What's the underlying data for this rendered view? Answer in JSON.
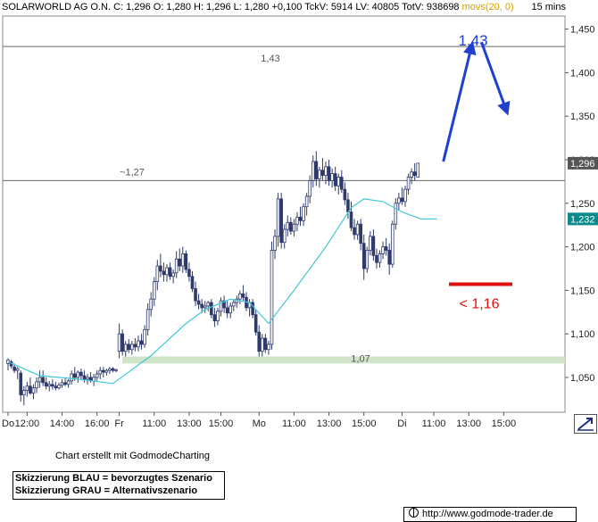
{
  "header": {
    "symbol": "SOLARWORLD AG O.N.",
    "quote": "C: 1,296 O: 1,280 H: 1,296 L: 1,280 +0,100 TckV: 5914 LV: 40805 TotV: 938698",
    "moving_avg_label": "movs(20, 0)",
    "timeframe": "15 mins"
  },
  "footer": {
    "credit": "Chart erstellt mit GodmodeCharting",
    "legend_blue": "Skizzierung BLAU = bevorzugtes Szenario",
    "legend_gray": "Skizzierung GRAU = Alternativszenario",
    "url": "http://www.godmode-trader.de"
  },
  "colors": {
    "candle": "#2e3a6b",
    "moving_average": "#40c8d8",
    "support_zone": "#cfe3c9",
    "blue_annotation": "#1f3fd0",
    "red_annotation": "#e01010",
    "price_badge": "#555555",
    "ma_badge": "#0a8a8a"
  },
  "chart_data": {
    "type": "candlestick",
    "y_axis": {
      "position": "right",
      "min": 1.01,
      "max": 1.465,
      "ticks": [
        "1,450",
        "1,400",
        "1,350",
        "1,300",
        "1,250",
        "1,200",
        "1,150",
        "1,100",
        "1,050"
      ],
      "tick_values": [
        1.45,
        1.4,
        1.35,
        1.3,
        1.25,
        1.2,
        1.15,
        1.1,
        1.05
      ]
    },
    "x_axis": {
      "labels": [
        "Do",
        "12:00",
        "14:00",
        "16:00",
        "Fr",
        "11:00",
        "13:00",
        "15:00",
        "Mo",
        "11:00",
        "13:00",
        "15:00",
        "Di",
        "11:00",
        "13:00",
        "15:00"
      ],
      "label_index": [
        0,
        6,
        17,
        28,
        35,
        46,
        57,
        67,
        79,
        90,
        101,
        112,
        124,
        134,
        145,
        156
      ]
    },
    "bar_count": 164,
    "current_price_badge": "1,296",
    "moving_average_badge": "1,232",
    "candles": [
      {
        "o": 1.066,
        "h": 1.072,
        "l": 1.058,
        "c": 1.07
      },
      {
        "o": 1.068,
        "h": 1.07,
        "l": 1.06,
        "c": 1.063
      },
      {
        "o": 1.062,
        "h": 1.066,
        "l": 1.055,
        "c": 1.058
      },
      {
        "o": 1.058,
        "h": 1.062,
        "l": 1.048,
        "c": 1.06
      },
      {
        "o": 1.055,
        "h": 1.058,
        "l": 1.022,
        "c": 1.03
      },
      {
        "o": 1.03,
        "h": 1.04,
        "l": 1.018,
        "c": 1.035
      },
      {
        "o": 1.035,
        "h": 1.045,
        "l": 1.028,
        "c": 1.04
      },
      {
        "o": 1.04,
        "h": 1.05,
        "l": 1.03,
        "c": 1.032
      },
      {
        "o": 1.032,
        "h": 1.042,
        "l": 1.025,
        "c": 1.038
      },
      {
        "o": 1.038,
        "h": 1.05,
        "l": 1.032,
        "c": 1.045
      },
      {
        "o": 1.045,
        "h": 1.058,
        "l": 1.038,
        "c": 1.05
      },
      {
        "o": 1.05,
        "h": 1.058,
        "l": 1.04,
        "c": 1.044
      },
      {
        "o": 1.044,
        "h": 1.05,
        "l": 1.036,
        "c": 1.04
      },
      {
        "o": 1.04,
        "h": 1.046,
        "l": 1.034,
        "c": 1.042
      },
      {
        "o": 1.042,
        "h": 1.048,
        "l": 1.036,
        "c": 1.04
      },
      {
        "o": 1.04,
        "h": 1.045,
        "l": 1.035,
        "c": 1.038
      },
      {
        "o": 1.038,
        "h": 1.044,
        "l": 1.036,
        "c": 1.041
      },
      {
        "o": 1.041,
        "h": 1.048,
        "l": 1.038,
        "c": 1.044
      },
      {
        "o": 1.044,
        "h": 1.05,
        "l": 1.04,
        "c": 1.042
      },
      {
        "o": 1.042,
        "h": 1.048,
        "l": 1.038,
        "c": 1.046
      },
      {
        "o": 1.046,
        "h": 1.058,
        "l": 1.042,
        "c": 1.054
      },
      {
        "o": 1.054,
        "h": 1.062,
        "l": 1.046,
        "c": 1.05
      },
      {
        "o": 1.05,
        "h": 1.058,
        "l": 1.044,
        "c": 1.056
      },
      {
        "o": 1.056,
        "h": 1.06,
        "l": 1.048,
        "c": 1.052
      },
      {
        "o": 1.052,
        "h": 1.058,
        "l": 1.044,
        "c": 1.048
      },
      {
        "o": 1.048,
        "h": 1.054,
        "l": 1.042,
        "c": 1.05
      },
      {
        "o": 1.05,
        "h": 1.056,
        "l": 1.044,
        "c": 1.046
      },
      {
        "o": 1.046,
        "h": 1.054,
        "l": 1.04,
        "c": 1.05
      },
      {
        "o": 1.05,
        "h": 1.058,
        "l": 1.046,
        "c": 1.054
      },
      {
        "o": 1.054,
        "h": 1.062,
        "l": 1.048,
        "c": 1.058
      },
      {
        "o": 1.058,
        "h": 1.062,
        "l": 1.05,
        "c": 1.056
      },
      {
        "o": 1.056,
        "h": 1.06,
        "l": 1.052,
        "c": 1.058
      },
      {
        "o": 1.058,
        "h": 1.062,
        "l": 1.054,
        "c": 1.06
      },
      {
        "o": 1.06,
        "h": 1.062,
        "l": 1.056,
        "c": 1.058
      },
      {
        "o": 1.058,
        "h": 1.06,
        "l": 1.056,
        "c": 1.059
      },
      {
        "o": 1.08,
        "h": 1.112,
        "l": 1.072,
        "c": 1.1
      },
      {
        "o": 1.1,
        "h": 1.105,
        "l": 1.075,
        "c": 1.08
      },
      {
        "o": 1.08,
        "h": 1.092,
        "l": 1.074,
        "c": 1.088
      },
      {
        "o": 1.088,
        "h": 1.094,
        "l": 1.078,
        "c": 1.082
      },
      {
        "o": 1.082,
        "h": 1.092,
        "l": 1.076,
        "c": 1.088
      },
      {
        "o": 1.088,
        "h": 1.095,
        "l": 1.08,
        "c": 1.085
      },
      {
        "o": 1.085,
        "h": 1.098,
        "l": 1.08,
        "c": 1.092
      },
      {
        "o": 1.092,
        "h": 1.1,
        "l": 1.082,
        "c": 1.088
      },
      {
        "o": 1.088,
        "h": 1.11,
        "l": 1.084,
        "c": 1.105
      },
      {
        "o": 1.105,
        "h": 1.135,
        "l": 1.098,
        "c": 1.128
      },
      {
        "o": 1.128,
        "h": 1.148,
        "l": 1.12,
        "c": 1.14
      },
      {
        "o": 1.14,
        "h": 1.165,
        "l": 1.132,
        "c": 1.16
      },
      {
        "o": 1.16,
        "h": 1.185,
        "l": 1.15,
        "c": 1.178
      },
      {
        "o": 1.178,
        "h": 1.192,
        "l": 1.165,
        "c": 1.172
      },
      {
        "o": 1.172,
        "h": 1.182,
        "l": 1.16,
        "c": 1.168
      },
      {
        "o": 1.168,
        "h": 1.18,
        "l": 1.16,
        "c": 1.176
      },
      {
        "o": 1.176,
        "h": 1.182,
        "l": 1.162,
        "c": 1.166
      },
      {
        "o": 1.166,
        "h": 1.174,
        "l": 1.158,
        "c": 1.17
      },
      {
        "o": 1.17,
        "h": 1.195,
        "l": 1.164,
        "c": 1.186
      },
      {
        "o": 1.186,
        "h": 1.198,
        "l": 1.172,
        "c": 1.178
      },
      {
        "o": 1.178,
        "h": 1.2,
        "l": 1.17,
        "c": 1.192
      },
      {
        "o": 1.192,
        "h": 1.196,
        "l": 1.17,
        "c": 1.174
      },
      {
        "o": 1.174,
        "h": 1.182,
        "l": 1.16,
        "c": 1.166
      },
      {
        "o": 1.166,
        "h": 1.172,
        "l": 1.148,
        "c": 1.152
      },
      {
        "o": 1.152,
        "h": 1.16,
        "l": 1.132,
        "c": 1.138
      },
      {
        "o": 1.138,
        "h": 1.146,
        "l": 1.128,
        "c": 1.134
      },
      {
        "o": 1.134,
        "h": 1.14,
        "l": 1.124,
        "c": 1.13
      },
      {
        "o": 1.13,
        "h": 1.138,
        "l": 1.124,
        "c": 1.132
      },
      {
        "o": 1.132,
        "h": 1.138,
        "l": 1.126,
        "c": 1.136
      },
      {
        "o": 1.136,
        "h": 1.14,
        "l": 1.118,
        "c": 1.122
      },
      {
        "o": 1.122,
        "h": 1.13,
        "l": 1.108,
        "c": 1.115
      },
      {
        "o": 1.115,
        "h": 1.13,
        "l": 1.11,
        "c": 1.126
      },
      {
        "o": 1.126,
        "h": 1.142,
        "l": 1.12,
        "c": 1.138
      },
      {
        "o": 1.138,
        "h": 1.144,
        "l": 1.124,
        "c": 1.13
      },
      {
        "o": 1.13,
        "h": 1.138,
        "l": 1.118,
        "c": 1.124
      },
      {
        "o": 1.124,
        "h": 1.136,
        "l": 1.118,
        "c": 1.132
      },
      {
        "o": 1.132,
        "h": 1.14,
        "l": 1.126,
        "c": 1.136
      },
      {
        "o": 1.136,
        "h": 1.144,
        "l": 1.13,
        "c": 1.14
      },
      {
        "o": 1.14,
        "h": 1.15,
        "l": 1.134,
        "c": 1.146
      },
      {
        "o": 1.146,
        "h": 1.156,
        "l": 1.138,
        "c": 1.142
      },
      {
        "o": 1.142,
        "h": 1.148,
        "l": 1.126,
        "c": 1.13
      },
      {
        "o": 1.13,
        "h": 1.14,
        "l": 1.12,
        "c": 1.136
      },
      {
        "o": 1.136,
        "h": 1.14,
        "l": 1.118,
        "c": 1.122
      },
      {
        "o": 1.122,
        "h": 1.128,
        "l": 1.098,
        "c": 1.102
      },
      {
        "o": 1.102,
        "h": 1.11,
        "l": 1.074,
        "c": 1.08
      },
      {
        "o": 1.08,
        "h": 1.1,
        "l": 1.074,
        "c": 1.095
      },
      {
        "o": 1.095,
        "h": 1.1,
        "l": 1.078,
        "c": 1.082
      },
      {
        "o": 1.082,
        "h": 1.092,
        "l": 1.076,
        "c": 1.088
      },
      {
        "o": 1.088,
        "h": 1.206,
        "l": 1.082,
        "c": 1.196
      },
      {
        "o": 1.196,
        "h": 1.22,
        "l": 1.186,
        "c": 1.212
      },
      {
        "o": 1.212,
        "h": 1.262,
        "l": 1.2,
        "c": 1.255
      },
      {
        "o": 1.255,
        "h": 1.262,
        "l": 1.198,
        "c": 1.205
      },
      {
        "o": 1.205,
        "h": 1.226,
        "l": 1.198,
        "c": 1.22
      },
      {
        "o": 1.22,
        "h": 1.236,
        "l": 1.212,
        "c": 1.228
      },
      {
        "o": 1.228,
        "h": 1.234,
        "l": 1.214,
        "c": 1.218
      },
      {
        "o": 1.218,
        "h": 1.232,
        "l": 1.212,
        "c": 1.226
      },
      {
        "o": 1.226,
        "h": 1.24,
        "l": 1.218,
        "c": 1.234
      },
      {
        "o": 1.234,
        "h": 1.246,
        "l": 1.224,
        "c": 1.23
      },
      {
        "o": 1.23,
        "h": 1.25,
        "l": 1.224,
        "c": 1.246
      },
      {
        "o": 1.246,
        "h": 1.262,
        "l": 1.236,
        "c": 1.258
      },
      {
        "o": 1.258,
        "h": 1.282,
        "l": 1.25,
        "c": 1.276
      },
      {
        "o": 1.276,
        "h": 1.305,
        "l": 1.268,
        "c": 1.298
      },
      {
        "o": 1.298,
        "h": 1.31,
        "l": 1.27,
        "c": 1.278
      },
      {
        "o": 1.278,
        "h": 1.292,
        "l": 1.268,
        "c": 1.288
      },
      {
        "o": 1.288,
        "h": 1.302,
        "l": 1.276,
        "c": 1.282
      },
      {
        "o": 1.282,
        "h": 1.298,
        "l": 1.272,
        "c": 1.292
      },
      {
        "o": 1.292,
        "h": 1.3,
        "l": 1.27,
        "c": 1.276
      },
      {
        "o": 1.276,
        "h": 1.29,
        "l": 1.268,
        "c": 1.284
      },
      {
        "o": 1.284,
        "h": 1.292,
        "l": 1.264,
        "c": 1.27
      },
      {
        "o": 1.27,
        "h": 1.284,
        "l": 1.26,
        "c": 1.28
      },
      {
        "o": 1.28,
        "h": 1.288,
        "l": 1.262,
        "c": 1.266
      },
      {
        "o": 1.266,
        "h": 1.274,
        "l": 1.248,
        "c": 1.254
      },
      {
        "o": 1.254,
        "h": 1.262,
        "l": 1.232,
        "c": 1.24
      },
      {
        "o": 1.24,
        "h": 1.252,
        "l": 1.218,
        "c": 1.222
      },
      {
        "o": 1.222,
        "h": 1.232,
        "l": 1.208,
        "c": 1.214
      },
      {
        "o": 1.214,
        "h": 1.23,
        "l": 1.208,
        "c": 1.226
      },
      {
        "o": 1.226,
        "h": 1.232,
        "l": 1.196,
        "c": 1.204
      },
      {
        "o": 1.204,
        "h": 1.214,
        "l": 1.162,
        "c": 1.175
      },
      {
        "o": 1.175,
        "h": 1.2,
        "l": 1.17,
        "c": 1.196
      },
      {
        "o": 1.196,
        "h": 1.218,
        "l": 1.19,
        "c": 1.212
      },
      {
        "o": 1.212,
        "h": 1.22,
        "l": 1.184,
        "c": 1.19
      },
      {
        "o": 1.19,
        "h": 1.198,
        "l": 1.175,
        "c": 1.182
      },
      {
        "o": 1.182,
        "h": 1.196,
        "l": 1.176,
        "c": 1.192
      },
      {
        "o": 1.192,
        "h": 1.206,
        "l": 1.186,
        "c": 1.2
      },
      {
        "o": 1.2,
        "h": 1.21,
        "l": 1.19,
        "c": 1.196
      },
      {
        "o": 1.196,
        "h": 1.204,
        "l": 1.168,
        "c": 1.18
      },
      {
        "o": 1.18,
        "h": 1.23,
        "l": 1.176,
        "c": 1.226
      },
      {
        "o": 1.226,
        "h": 1.256,
        "l": 1.22,
        "c": 1.25
      },
      {
        "o": 1.25,
        "h": 1.262,
        "l": 1.242,
        "c": 1.256
      },
      {
        "o": 1.256,
        "h": 1.268,
        "l": 1.248,
        "c": 1.252
      },
      {
        "o": 1.252,
        "h": 1.27,
        "l": 1.246,
        "c": 1.266
      },
      {
        "o": 1.266,
        "h": 1.284,
        "l": 1.26,
        "c": 1.28
      },
      {
        "o": 1.28,
        "h": 1.29,
        "l": 1.272,
        "c": 1.286
      },
      {
        "o": 1.286,
        "h": 1.296,
        "l": 1.276,
        "c": 1.282
      },
      {
        "o": 1.28,
        "h": 1.296,
        "l": 1.28,
        "c": 1.296
      }
    ],
    "moving_average": [
      [
        0,
        1.068
      ],
      [
        10,
        1.052
      ],
      [
        22,
        1.048
      ],
      [
        33,
        1.043
      ],
      [
        45,
        1.075
      ],
      [
        56,
        1.112
      ],
      [
        62,
        1.128
      ],
      [
        70,
        1.14
      ],
      [
        76,
        1.136
      ],
      [
        82,
        1.112
      ],
      [
        90,
        1.15
      ],
      [
        100,
        1.2
      ],
      [
        108,
        1.245
      ],
      [
        112,
        1.255
      ],
      [
        118,
        1.252
      ],
      [
        124,
        1.24
      ],
      [
        130,
        1.232
      ],
      [
        135,
        1.232
      ]
    ],
    "reference_lines": [
      {
        "label": "1,43",
        "value": 1.43
      },
      {
        "label": "~1,27",
        "value": 1.276
      }
    ],
    "support_zone": {
      "label": "1,07",
      "low": 1.066,
      "high": 1.074
    },
    "annotations": {
      "blue_target_label": "1,43",
      "red_level_label": "< 1,16",
      "red_level_value": 1.157,
      "blue_path": [
        [
          137,
          1.298
        ],
        [
          146,
          1.432
        ],
        [
          149,
          1.435
        ],
        [
          157,
          1.355
        ]
      ]
    }
  }
}
